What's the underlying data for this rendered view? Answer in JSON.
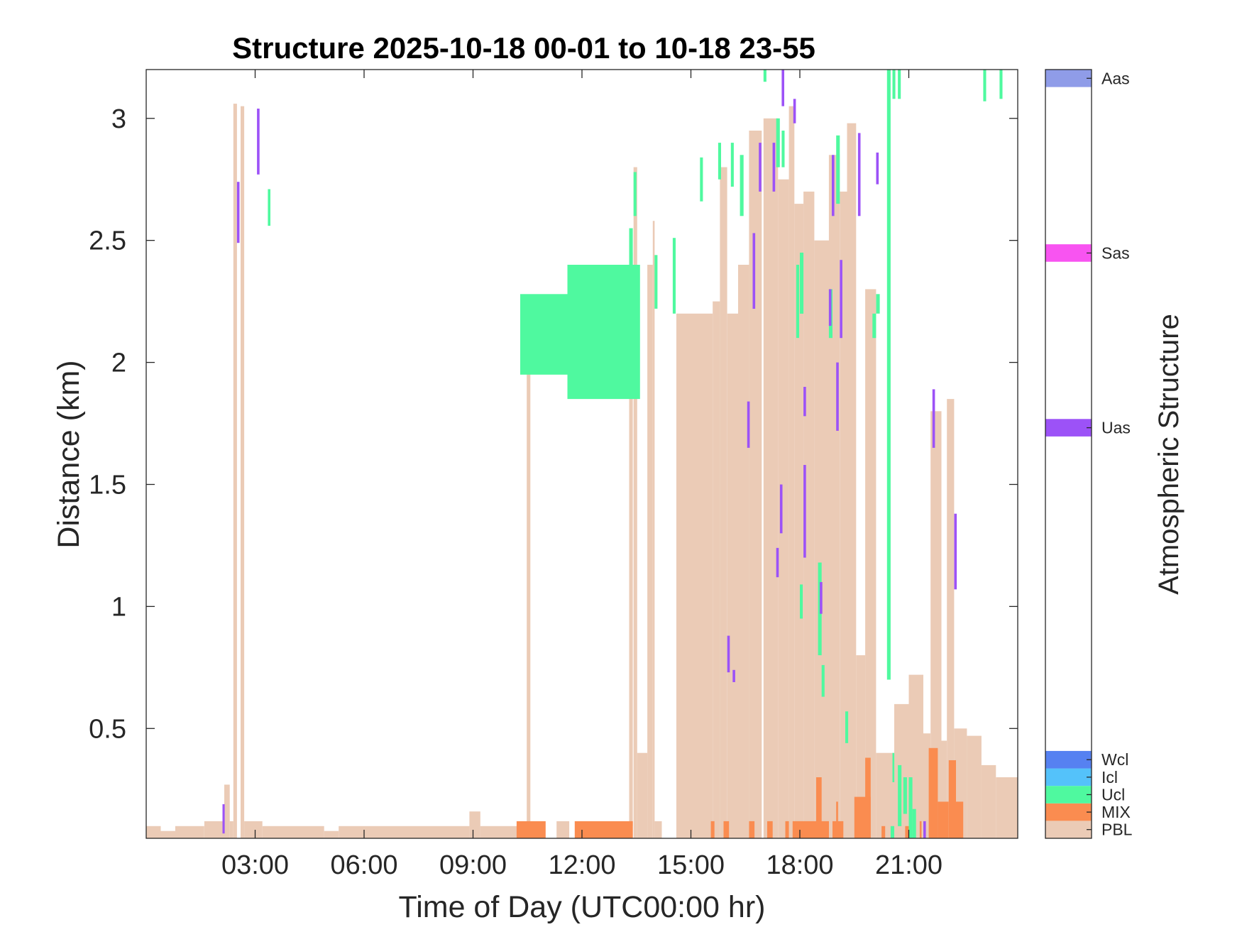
{
  "chart_data": {
    "type": "heatmap",
    "title": "Structure 2025-10-18 00-01 to 10-18 23-55",
    "xlabel": "Time of Day (UTC00:00 hr)",
    "ylabel": "Distance (km)",
    "xlim": [
      0,
      24
    ],
    "ylim": [
      0.05,
      3.2
    ],
    "x_ticks": [
      {
        "value": 3,
        "label": "03:00"
      },
      {
        "value": 6,
        "label": "06:00"
      },
      {
        "value": 9,
        "label": "09:00"
      },
      {
        "value": 12,
        "label": "12:00"
      },
      {
        "value": 15,
        "label": "15:00"
      },
      {
        "value": 18,
        "label": "18:00"
      },
      {
        "value": 21,
        "label": "21:00"
      }
    ],
    "y_ticks": [
      {
        "value": 0.5,
        "label": "0.5"
      },
      {
        "value": 1,
        "label": "1"
      },
      {
        "value": 1.5,
        "label": "1.5"
      },
      {
        "value": 2,
        "label": "2"
      },
      {
        "value": 2.5,
        "label": "2.5"
      },
      {
        "value": 3,
        "label": "3"
      }
    ],
    "colorbar": {
      "title": "Atmospheric Structure",
      "categories": [
        {
          "code": "PBL",
          "color": "#EBCBB6",
          "value": 0.5
        },
        {
          "code": "MIX",
          "color": "#FA8C50",
          "value": 1.5
        },
        {
          "code": "Ucl",
          "color": "#4FF99F",
          "value": 2.5
        },
        {
          "code": "Icl",
          "color": "#54C2FA",
          "value": 3.5
        },
        {
          "code": "Wcl",
          "color": "#5681F1",
          "value": 4.5
        },
        {
          "code": "Uas",
          "color": "#9C52F7",
          "value": 23.5
        },
        {
          "code": "Sas",
          "color": "#F854F1",
          "value": 33.5
        },
        {
          "code": "Aas",
          "color": "#8F9CE8",
          "value": 43.5
        }
      ],
      "range": [
        0,
        44
      ]
    },
    "series": [
      {
        "code": "PBL",
        "segments": [
          [
            0.0,
            0.4,
            0.05,
            0.1
          ],
          [
            0.4,
            0.8,
            0.05,
            0.08
          ],
          [
            0.8,
            1.6,
            0.05,
            0.1
          ],
          [
            1.6,
            2.2,
            0.05,
            0.12
          ],
          [
            2.15,
            2.3,
            0.05,
            0.27
          ],
          [
            2.3,
            2.4,
            0.05,
            0.12
          ],
          [
            2.4,
            2.5,
            0.05,
            3.06
          ],
          [
            2.6,
            2.7,
            0.05,
            3.05
          ],
          [
            2.7,
            3.2,
            0.05,
            0.12
          ],
          [
            3.2,
            4.9,
            0.05,
            0.1
          ],
          [
            4.9,
            5.3,
            0.05,
            0.08
          ],
          [
            5.3,
            8.9,
            0.05,
            0.1
          ],
          [
            8.9,
            9.2,
            0.05,
            0.16
          ],
          [
            9.2,
            10.3,
            0.05,
            0.1
          ],
          [
            10.48,
            10.58,
            0.1,
            2.05
          ],
          [
            11.3,
            11.65,
            0.05,
            0.12
          ],
          [
            13.3,
            13.4,
            0.1,
            2.45
          ],
          [
            13.42,
            13.52,
            0.05,
            2.8
          ],
          [
            13.52,
            13.8,
            0.05,
            0.4
          ],
          [
            13.8,
            13.95,
            0.05,
            2.4
          ],
          [
            13.95,
            14.0,
            0.05,
            2.58
          ],
          [
            14.0,
            14.2,
            0.05,
            0.12
          ],
          [
            14.6,
            15.6,
            0.05,
            2.2
          ],
          [
            15.6,
            15.8,
            0.05,
            2.25
          ],
          [
            15.8,
            16.0,
            0.05,
            2.8
          ],
          [
            16.0,
            16.3,
            0.05,
            2.2
          ],
          [
            16.3,
            16.6,
            0.05,
            2.4
          ],
          [
            16.6,
            16.95,
            0.05,
            2.95
          ],
          [
            17.0,
            17.4,
            0.05,
            3.0
          ],
          [
            17.4,
            17.7,
            0.05,
            2.75
          ],
          [
            17.7,
            17.85,
            0.05,
            3.05
          ],
          [
            17.85,
            18.1,
            0.05,
            2.65
          ],
          [
            18.1,
            18.4,
            0.05,
            2.7
          ],
          [
            18.4,
            18.8,
            0.05,
            2.5
          ],
          [
            18.8,
            19.1,
            0.05,
            2.85
          ],
          [
            19.1,
            19.3,
            0.05,
            2.7
          ],
          [
            19.3,
            19.55,
            0.05,
            2.98
          ],
          [
            19.55,
            19.8,
            0.05,
            0.8
          ],
          [
            19.8,
            20.1,
            0.05,
            2.3
          ],
          [
            20.1,
            20.6,
            0.05,
            0.4
          ],
          [
            20.6,
            21.0,
            0.05,
            0.6
          ],
          [
            21.0,
            21.4,
            0.05,
            0.72
          ],
          [
            21.4,
            21.6,
            0.05,
            0.48
          ],
          [
            21.6,
            21.9,
            0.05,
            1.8
          ],
          [
            21.9,
            22.05,
            0.05,
            0.45
          ],
          [
            22.05,
            22.25,
            0.05,
            1.85
          ],
          [
            22.25,
            22.6,
            0.05,
            0.5
          ],
          [
            22.6,
            23.0,
            0.05,
            0.47
          ],
          [
            23.0,
            23.4,
            0.05,
            0.35
          ],
          [
            23.4,
            24.0,
            0.05,
            0.3
          ]
        ]
      },
      {
        "code": "MIX",
        "segments": [
          [
            10.2,
            11.0,
            0.05,
            0.12
          ],
          [
            11.8,
            13.4,
            0.05,
            0.12
          ],
          [
            15.55,
            15.65,
            0.05,
            0.12
          ],
          [
            15.9,
            16.05,
            0.05,
            0.12
          ],
          [
            16.6,
            16.75,
            0.05,
            0.12
          ],
          [
            17.1,
            17.25,
            0.05,
            0.12
          ],
          [
            17.6,
            17.7,
            0.05,
            0.12
          ],
          [
            17.8,
            18.8,
            0.05,
            0.12
          ],
          [
            18.45,
            18.6,
            0.05,
            0.3
          ],
          [
            18.9,
            19.2,
            0.05,
            0.12
          ],
          [
            19.0,
            19.05,
            0.05,
            0.2
          ],
          [
            19.5,
            19.95,
            0.05,
            0.22
          ],
          [
            19.8,
            19.95,
            0.05,
            0.38
          ],
          [
            20.25,
            20.35,
            0.05,
            0.1
          ],
          [
            20.9,
            21.0,
            0.05,
            0.1
          ],
          [
            21.3,
            21.35,
            0.05,
            0.12
          ],
          [
            21.55,
            21.8,
            0.05,
            0.42
          ],
          [
            21.8,
            22.1,
            0.05,
            0.2
          ],
          [
            22.1,
            22.3,
            0.05,
            0.37
          ],
          [
            22.3,
            22.5,
            0.05,
            0.2
          ]
        ]
      },
      {
        "code": "Ucl",
        "segments": [
          [
            3.35,
            3.42,
            2.56,
            2.71
          ],
          [
            13.3,
            13.4,
            2.25,
            2.55
          ],
          [
            13.42,
            13.5,
            2.6,
            2.78
          ],
          [
            14.0,
            14.08,
            2.22,
            2.44
          ],
          [
            14.5,
            14.58,
            2.2,
            2.51
          ],
          [
            15.25,
            15.33,
            2.66,
            2.84
          ],
          [
            15.75,
            15.83,
            2.75,
            2.9
          ],
          [
            16.1,
            16.18,
            2.72,
            2.9
          ],
          [
            16.35,
            16.45,
            2.6,
            2.85
          ],
          [
            17.0,
            17.08,
            3.15,
            3.2
          ],
          [
            17.35,
            17.45,
            2.8,
            3.0
          ],
          [
            17.5,
            17.58,
            2.8,
            2.95
          ],
          [
            18.0,
            18.1,
            2.2,
            2.45
          ],
          [
            17.9,
            17.98,
            2.1,
            2.4
          ],
          [
            18.5,
            18.6,
            0.8,
            1.18
          ],
          [
            18.6,
            18.68,
            0.63,
            0.76
          ],
          [
            18.0,
            18.08,
            0.95,
            1.09
          ],
          [
            18.8,
            18.9,
            2.1,
            2.3
          ],
          [
            19.0,
            19.1,
            2.65,
            2.93
          ],
          [
            19.25,
            19.33,
            0.44,
            0.57
          ],
          [
            20.0,
            20.1,
            2.1,
            2.2
          ],
          [
            20.1,
            20.2,
            2.2,
            2.28
          ],
          [
            20.4,
            20.5,
            0.7,
            3.2
          ],
          [
            20.5,
            20.6,
            0.05,
            0.1
          ],
          [
            20.55,
            20.6,
            0.28,
            0.4
          ],
          [
            20.7,
            20.8,
            0.1,
            0.35
          ],
          [
            20.85,
            20.95,
            0.15,
            0.3
          ],
          [
            21.0,
            21.1,
            0.05,
            0.3
          ],
          [
            21.1,
            21.2,
            0.05,
            0.17
          ],
          [
            20.55,
            20.63,
            3.08,
            3.2
          ],
          [
            20.7,
            20.78,
            3.08,
            3.2
          ],
          [
            23.05,
            23.13,
            3.07,
            3.2
          ],
          [
            23.5,
            23.58,
            3.08,
            3.2
          ]
        ]
      },
      {
        "code": "Uas",
        "segments": [
          [
            2.1,
            2.16,
            0.07,
            0.19
          ],
          [
            2.5,
            2.57,
            2.49,
            2.74
          ],
          [
            3.05,
            3.12,
            2.77,
            3.04
          ],
          [
            16.0,
            16.07,
            0.73,
            0.88
          ],
          [
            16.15,
            16.22,
            0.69,
            0.74
          ],
          [
            16.55,
            16.62,
            1.65,
            1.84
          ],
          [
            16.7,
            16.77,
            2.22,
            2.53
          ],
          [
            16.87,
            16.94,
            2.7,
            2.9
          ],
          [
            17.25,
            17.32,
            2.7,
            2.9
          ],
          [
            17.35,
            17.42,
            1.12,
            1.24
          ],
          [
            17.45,
            17.52,
            1.3,
            1.5
          ],
          [
            17.5,
            17.57,
            3.05,
            3.2
          ],
          [
            17.82,
            17.89,
            2.98,
            3.08
          ],
          [
            18.1,
            18.17,
            1.2,
            1.58
          ],
          [
            18.1,
            18.17,
            1.78,
            1.9
          ],
          [
            18.55,
            18.62,
            0.97,
            1.1
          ],
          [
            18.8,
            18.87,
            2.15,
            2.3
          ],
          [
            18.88,
            18.95,
            2.6,
            2.85
          ],
          [
            19.0,
            19.07,
            1.72,
            2.0
          ],
          [
            19.1,
            19.17,
            2.1,
            2.42
          ],
          [
            19.6,
            19.67,
            2.6,
            2.94
          ],
          [
            20.1,
            20.17,
            2.73,
            2.86
          ],
          [
            21.4,
            21.47,
            0.05,
            0.12
          ],
          [
            21.65,
            21.72,
            1.65,
            1.89
          ],
          [
            22.25,
            22.32,
            1.07,
            1.38
          ]
        ]
      },
      {
        "code": "Ucl",
        "segments": [
          [
            10.3,
            11.6,
            1.95,
            2.28
          ],
          [
            11.6,
            13.6,
            1.85,
            2.4
          ]
        ]
      }
    ]
  }
}
